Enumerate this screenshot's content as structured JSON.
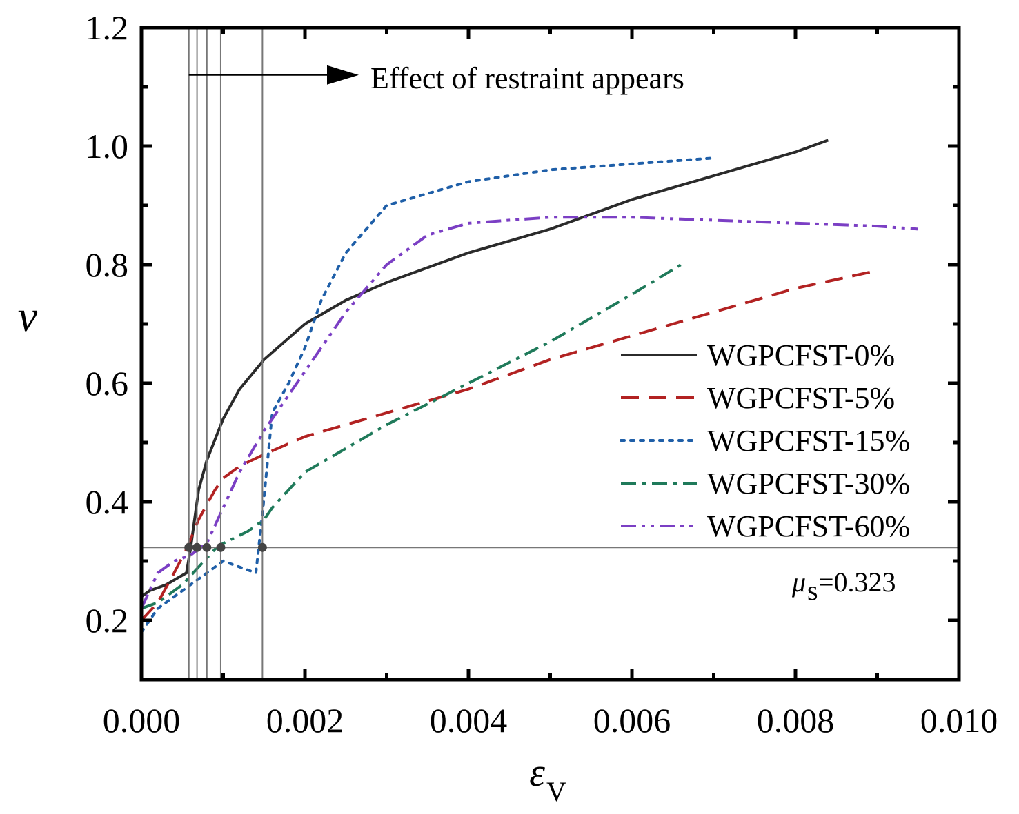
{
  "chart_data": {
    "type": "line",
    "xlabel": "ε",
    "xlabel_sub": "V",
    "ylabel": "ν",
    "xlim": [
      0,
      0.01
    ],
    "ylim": [
      0.1,
      1.2
    ],
    "x_ticks": [
      0.0,
      0.002,
      0.004,
      0.006,
      0.008,
      0.01
    ],
    "x_tick_labels": [
      "0.000",
      "0.002",
      "0.004",
      "0.006",
      "0.008",
      "0.010"
    ],
    "y_ticks": [
      0.2,
      0.4,
      0.6,
      0.8,
      1.0,
      1.2
    ],
    "y_tick_labels": [
      "0.2",
      "0.4",
      "0.6",
      "0.8",
      "1.0",
      "1.2"
    ],
    "grid": false,
    "legend_position": "right",
    "series": [
      {
        "name": "WGPCFST-0%",
        "color": "#2b2b2b",
        "dash": "solid",
        "x": [
          0,
          0.0001,
          0.0003,
          0.00055,
          0.0006,
          0.00065,
          0.0007,
          0.0008,
          0.001,
          0.0012,
          0.0015,
          0.002,
          0.0025,
          0.003,
          0.004,
          0.005,
          0.006,
          0.007,
          0.008,
          0.0084
        ],
        "y": [
          0.24,
          0.25,
          0.26,
          0.28,
          0.32,
          0.37,
          0.42,
          0.47,
          0.54,
          0.59,
          0.64,
          0.7,
          0.74,
          0.77,
          0.82,
          0.86,
          0.91,
          0.95,
          0.99,
          1.01
        ]
      },
      {
        "name": "WGPCFST-5%",
        "color": "#b22222",
        "dash": "dashed",
        "x": [
          0,
          0.0002,
          0.0004,
          0.00055,
          0.0007,
          0.0009,
          0.001,
          0.0012,
          0.0015,
          0.002,
          0.003,
          0.004,
          0.005,
          0.006,
          0.007,
          0.008,
          0.009
        ],
        "y": [
          0.2,
          0.23,
          0.28,
          0.32,
          0.37,
          0.42,
          0.44,
          0.46,
          0.48,
          0.51,
          0.55,
          0.59,
          0.64,
          0.68,
          0.72,
          0.76,
          0.79
        ]
      },
      {
        "name": "WGPCFST-15%",
        "color": "#1f5fa8",
        "dash": "dotted",
        "x": [
          0,
          0.0002,
          0.0004,
          0.0006,
          0.0008,
          0.001,
          0.0012,
          0.0014,
          0.00148,
          0.0016,
          0.0018,
          0.002,
          0.0022,
          0.0025,
          0.003,
          0.0035,
          0.004,
          0.005,
          0.006,
          0.007
        ],
        "y": [
          0.18,
          0.22,
          0.24,
          0.26,
          0.28,
          0.3,
          0.29,
          0.28,
          0.38,
          0.55,
          0.6,
          0.66,
          0.74,
          0.82,
          0.9,
          0.92,
          0.94,
          0.96,
          0.97,
          0.98
        ]
      },
      {
        "name": "WGPCFST-30%",
        "color": "#1f7a5a",
        "dash": "dashdot",
        "x": [
          0,
          0.0002,
          0.0005,
          0.0007,
          0.0009,
          0.001,
          0.0013,
          0.0015,
          0.0016,
          0.0018,
          0.002,
          0.0025,
          0.003,
          0.004,
          0.005,
          0.006,
          0.0066
        ],
        "y": [
          0.22,
          0.23,
          0.26,
          0.29,
          0.32,
          0.33,
          0.35,
          0.37,
          0.39,
          0.42,
          0.45,
          0.49,
          0.53,
          0.6,
          0.67,
          0.75,
          0.8
        ]
      },
      {
        "name": "WGPCFST-60%",
        "color": "#7b3fc4",
        "dash": "dashdotdot",
        "x": [
          0,
          0.0002,
          0.0004,
          0.0006,
          0.0008,
          0.001,
          0.0012,
          0.0015,
          0.002,
          0.0025,
          0.003,
          0.0035,
          0.004,
          0.005,
          0.006,
          0.007,
          0.008,
          0.009,
          0.0095
        ],
        "y": [
          0.22,
          0.28,
          0.3,
          0.31,
          0.33,
          0.39,
          0.45,
          0.52,
          0.62,
          0.72,
          0.8,
          0.85,
          0.87,
          0.88,
          0.88,
          0.875,
          0.87,
          0.865,
          0.86
        ]
      }
    ],
    "annotations": {
      "restraint_text": "Effect of restraint appears",
      "mu_symbol": "μ",
      "mu_sub": "s",
      "mu_value": "=0.323",
      "mu_s": 0.323,
      "restraint_points_x": [
        0.00058,
        0.00068,
        0.0008,
        0.00097,
        0.00148
      ],
      "arrow_y": 1.12
    }
  }
}
